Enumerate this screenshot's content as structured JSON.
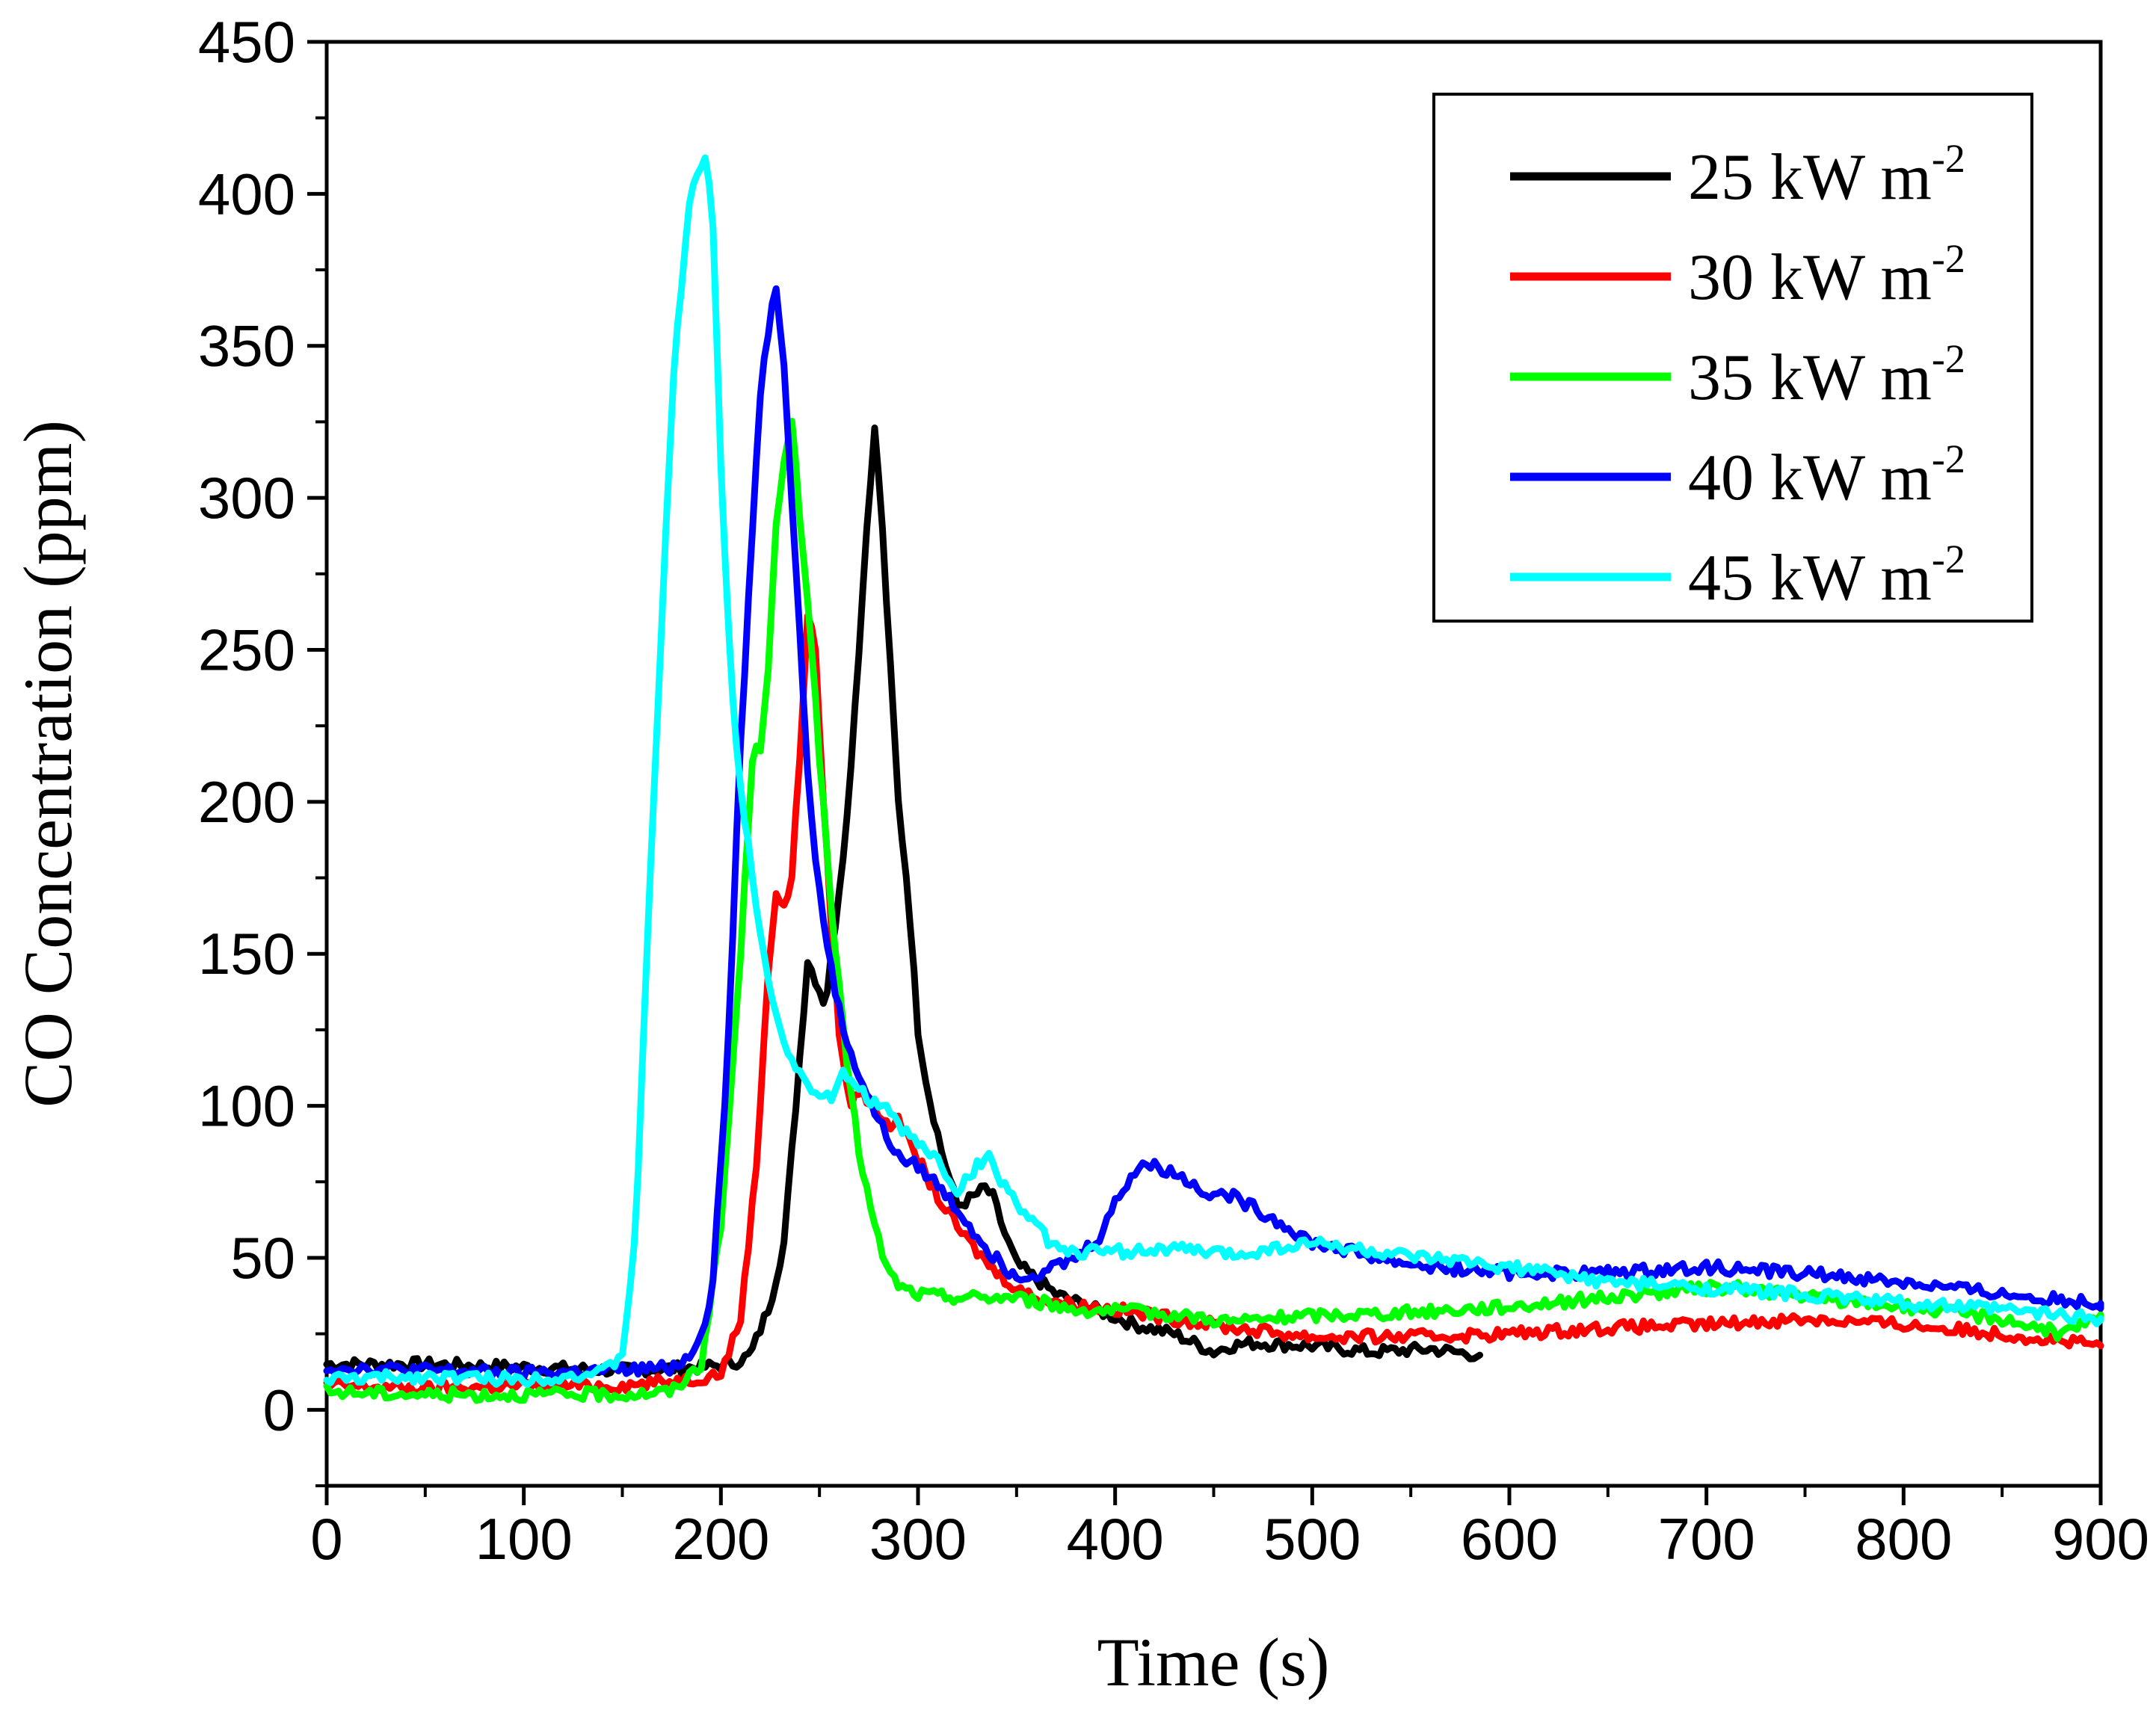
{
  "chart_data": {
    "type": "line",
    "title": "",
    "xlabel": "Time (s)",
    "ylabel": "CO Concentration (ppm)",
    "xlim": [
      0,
      900
    ],
    "ylim": [
      -25,
      450
    ],
    "xticks": [
      0,
      100,
      200,
      300,
      400,
      500,
      600,
      700,
      800,
      900
    ],
    "yticks": [
      0,
      50,
      100,
      150,
      200,
      250,
      300,
      350,
      400,
      450
    ],
    "grid": false,
    "legend_position": "top-right",
    "legend_unit_base": "kW m",
    "legend_unit_exp": "-2",
    "series": [
      {
        "name": "25 kW m-2",
        "label_value": "25",
        "color": "#000000",
        "x": [
          0,
          50,
          100,
          150,
          190,
          205,
          215,
          225,
          232,
          238,
          244,
          249,
          253,
          258,
          264,
          270,
          275,
          278,
          281,
          285,
          290,
          295,
          300,
          305,
          312,
          320,
          328,
          334,
          338,
          344,
          350,
          358,
          370,
          390,
          410,
          430,
          450,
          458,
          470,
          500,
          530,
          560,
          585
        ],
        "y": [
          15,
          15,
          14,
          13,
          14,
          15,
          18,
          35,
          55,
          100,
          148,
          140,
          133,
          160,
          195,
          250,
          300,
          322,
          300,
          255,
          200,
          170,
          125,
          105,
          85,
          67,
          70,
          73,
          70,
          58,
          48,
          44,
          38,
          33,
          28,
          25,
          19,
          21,
          22,
          21,
          19,
          20,
          18
        ]
      },
      {
        "name": "30 kW m-2",
        "label_value": "30",
        "color": "#ff0000",
        "x": [
          0,
          50,
          100,
          150,
          185,
          200,
          210,
          218,
          224,
          228,
          232,
          236,
          240,
          244,
          248,
          252,
          256,
          260,
          265,
          270,
          278,
          285,
          290,
          296,
          302,
          310,
          320,
          330,
          340,
          355,
          375,
          400,
          430,
          460,
          500,
          550,
          600,
          650,
          700,
          750,
          800,
          850,
          900
        ],
        "y": [
          8,
          7,
          8,
          8,
          10,
          12,
          30,
          80,
          145,
          170,
          165,
          175,
          215,
          262,
          250,
          200,
          160,
          125,
          100,
          105,
          100,
          92,
          97,
          87,
          80,
          70,
          60,
          52,
          45,
          38,
          35,
          33,
          30,
          27,
          24,
          24,
          25,
          27,
          28,
          30,
          28,
          25,
          21
        ]
      },
      {
        "name": "35 kW m-2",
        "label_value": "35",
        "color": "#00ff00",
        "x": [
          0,
          50,
          100,
          150,
          175,
          190,
          200,
          210,
          216,
          220,
          224,
          228,
          232,
          236,
          240,
          245,
          250,
          256,
          262,
          270,
          278,
          285,
          292,
          300,
          320,
          350,
          380,
          420,
          460,
          500,
          550,
          600,
          650,
          700,
          720,
          750,
          800,
          850,
          880,
          900
        ],
        "y": [
          6,
          5,
          5,
          5,
          6,
          15,
          60,
          150,
          215,
          218,
          245,
          290,
          310,
          326,
          295,
          260,
          215,
          165,
          125,
          85,
          60,
          45,
          40,
          38,
          37,
          37,
          33,
          32,
          29,
          31,
          32,
          34,
          37,
          40,
          40,
          37,
          34,
          30,
          25,
          30
        ]
      },
      {
        "name": "40 kW m-2",
        "label_value": "40",
        "color": "#0000ff",
        "x": [
          0,
          50,
          100,
          150,
          175,
          185,
          195,
          203,
          210,
          216,
          220,
          224,
          228,
          232,
          236,
          240,
          245,
          250,
          256,
          262,
          270,
          280,
          290,
          300,
          310,
          320,
          335,
          345,
          355,
          365,
          380,
          392,
          400,
          408,
          414,
          420,
          430,
          445,
          460,
          480,
          500,
          520,
          540,
          560,
          580,
          600,
          650,
          700,
          750,
          800,
          850,
          900
        ],
        "y": [
          14,
          13,
          12,
          13,
          14,
          18,
          35,
          110,
          220,
          290,
          335,
          355,
          370,
          345,
          300,
          255,
          200,
          170,
          145,
          125,
          110,
          95,
          83,
          80,
          74,
          66,
          53,
          46,
          44,
          46,
          50,
          57,
          68,
          77,
          81,
          80,
          78,
          72,
          70,
          63,
          55,
          52,
          49,
          47,
          46,
          45,
          45,
          47,
          45,
          42,
          38,
          35
        ]
      },
      {
        "name": "45 kW m-2",
        "label_value": "45",
        "color": "#00ffff",
        "x": [
          0,
          50,
          100,
          140,
          150,
          157,
          163,
          170,
          176,
          182,
          186,
          190,
          193,
          196,
          200,
          205,
          210,
          216,
          222,
          228,
          235,
          242,
          250,
          257,
          262,
          268,
          276,
          285,
          292,
          300,
          310,
          320,
          330,
          335,
          340,
          350,
          360,
          370,
          385,
          400,
          430,
          460,
          500,
          550,
          600,
          650,
          700,
          750,
          800,
          850,
          900
        ],
        "y": [
          10,
          11,
          10,
          12,
          18,
          60,
          160,
          260,
          340,
          385,
          405,
          410,
          412,
          390,
          310,
          240,
          205,
          175,
          150,
          130,
          115,
          110,
          102,
          103,
          110,
          107,
          102,
          98,
          92,
          88,
          82,
          72,
          80,
          84,
          78,
          68,
          60,
          53,
          52,
          52,
          53,
          51,
          55,
          50,
          47,
          42,
          40,
          38,
          35,
          33,
          30
        ]
      }
    ]
  }
}
